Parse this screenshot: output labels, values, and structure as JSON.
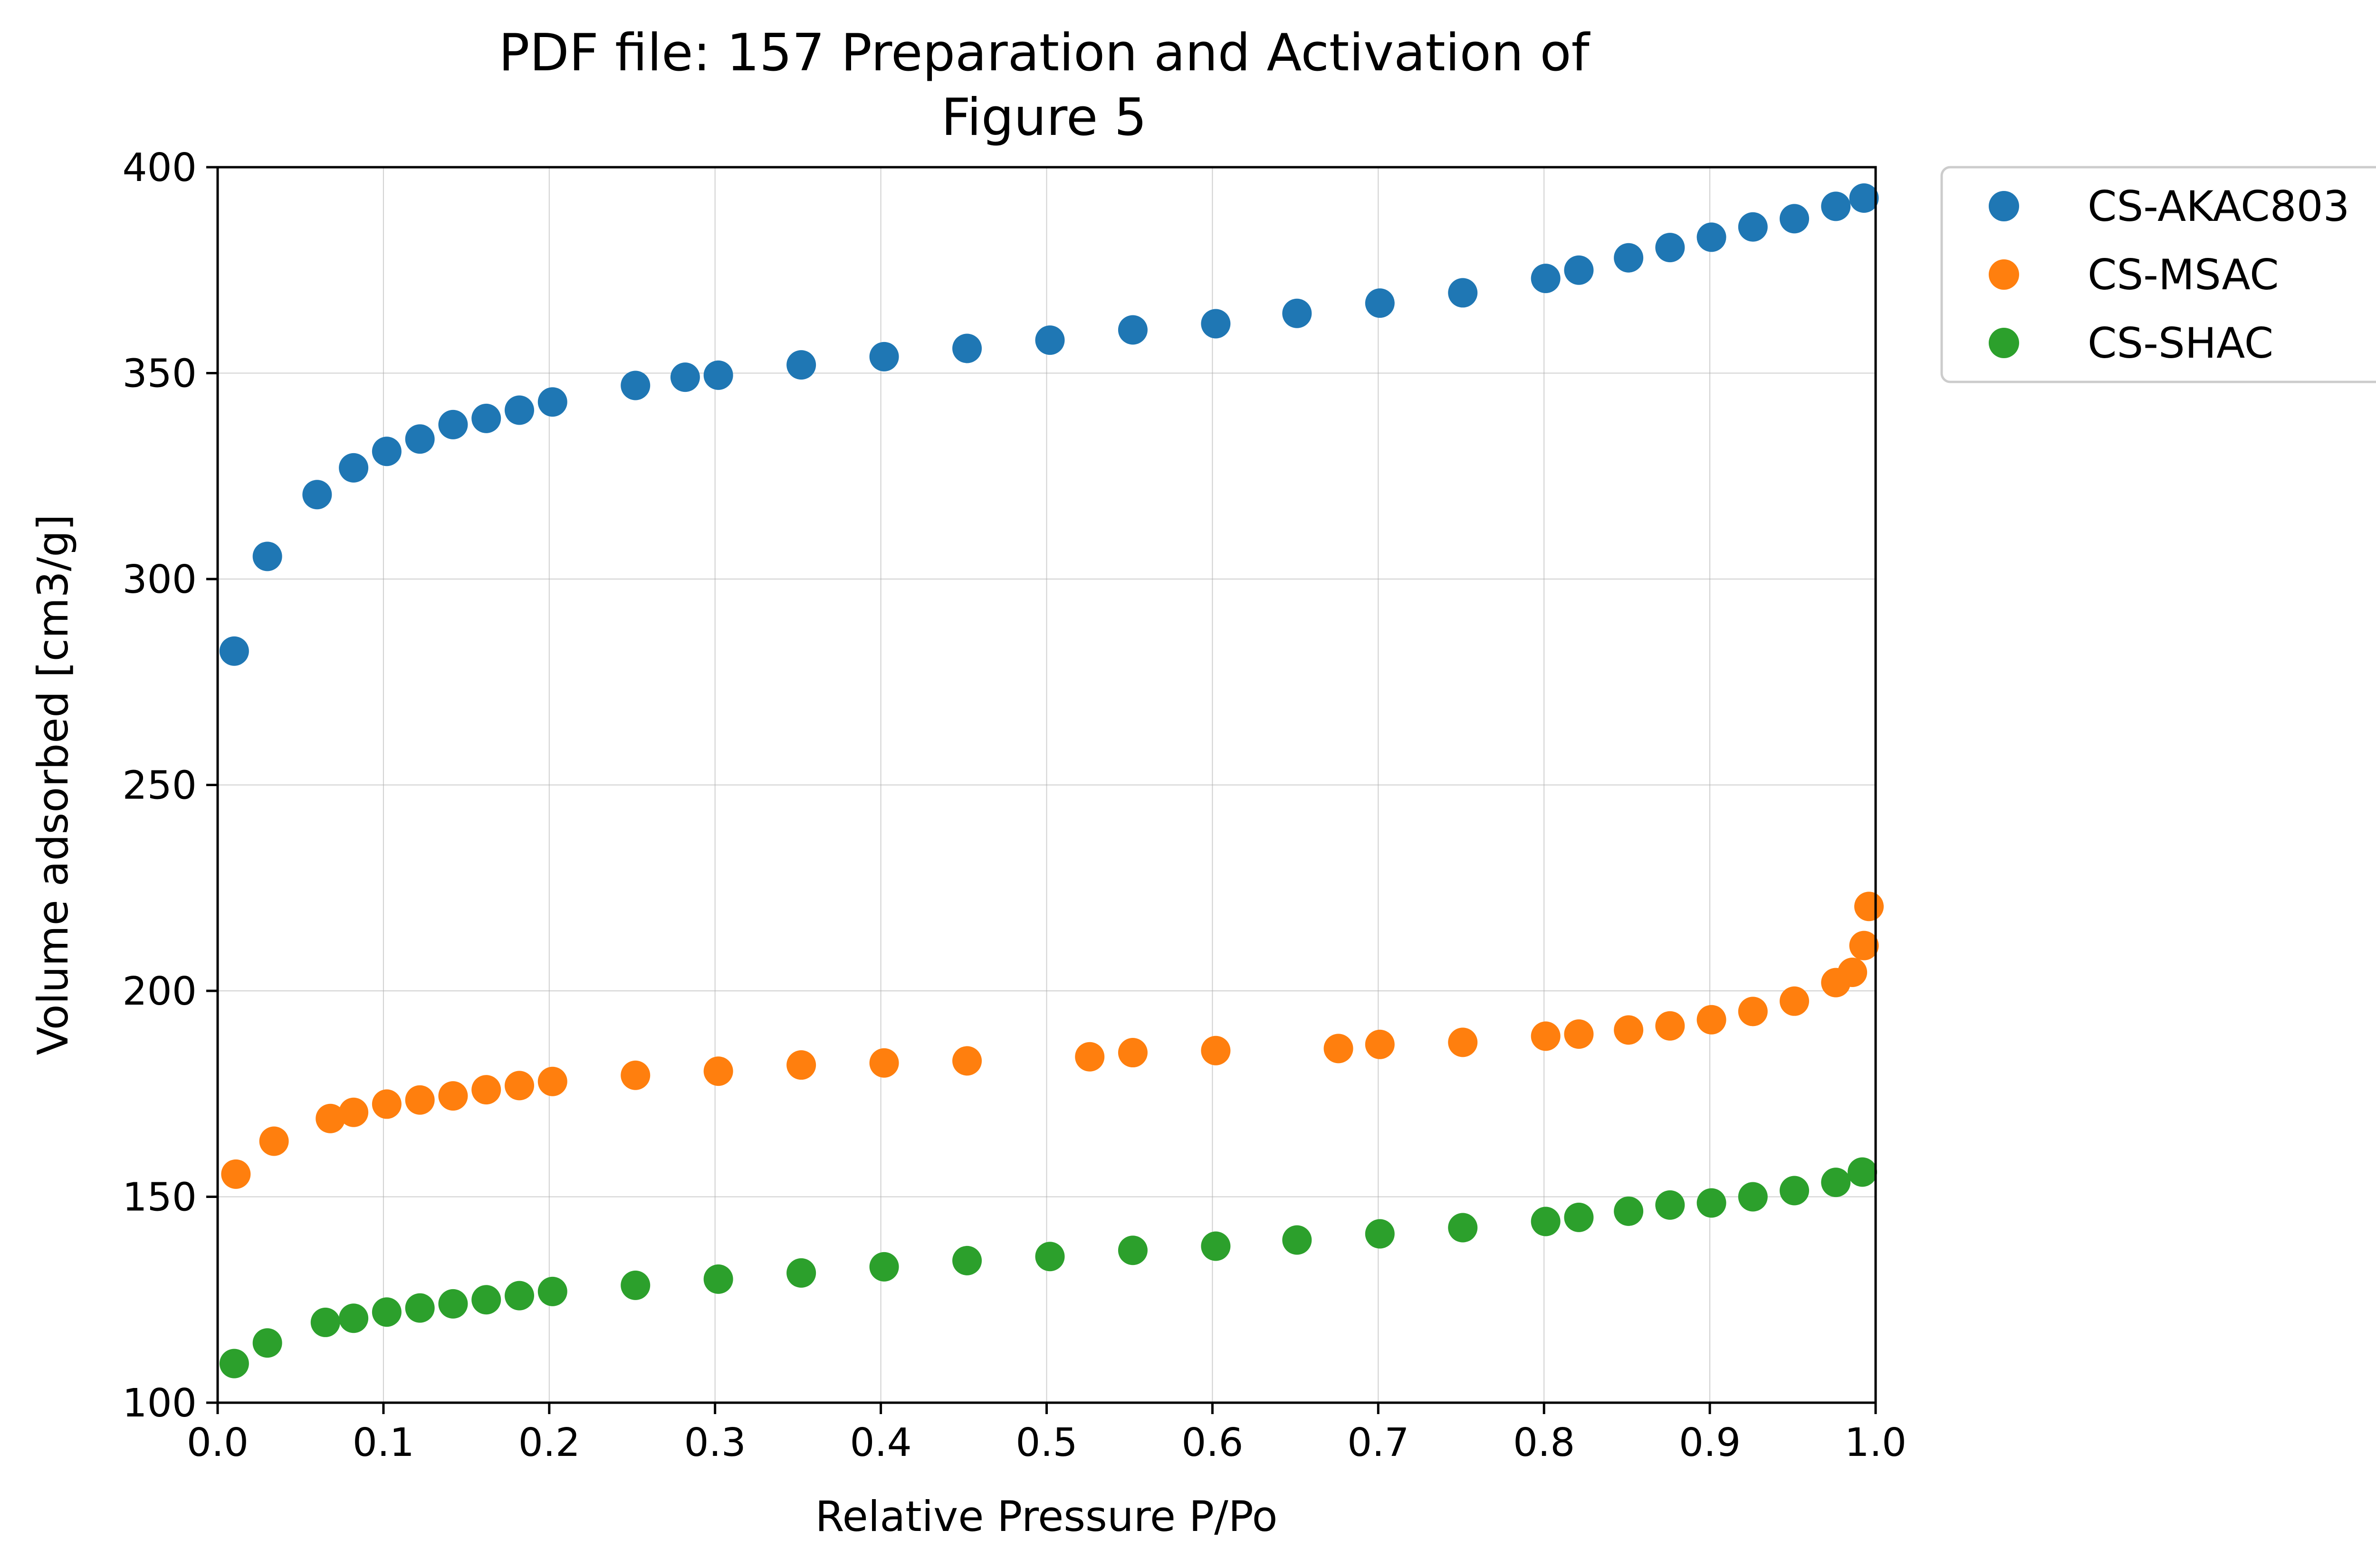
{
  "chart_data": {
    "type": "scatter",
    "title": "PDF file: 157 Preparation and Activation of",
    "subtitle": "Figure 5",
    "xlabel": "Relative Pressure P/Po",
    "ylabel": "Volume adsorbed [cm3/g]",
    "xlim": [
      0.0,
      1.0
    ],
    "ylim": [
      100,
      400
    ],
    "xticks": [
      "0.0",
      "0.1",
      "0.2",
      "0.3",
      "0.4",
      "0.5",
      "0.6",
      "0.7",
      "0.8",
      "0.9",
      "1.0"
    ],
    "yticks": [
      "100",
      "150",
      "200",
      "250",
      "300",
      "350",
      "400"
    ],
    "grid": true,
    "legend_position": "outside-top-right",
    "series": [
      {
        "name": "CS-AKAC803",
        "color": "#1f77b4",
        "x": [
          0.01,
          0.03,
          0.06,
          0.082,
          0.102,
          0.122,
          0.142,
          0.162,
          0.182,
          0.202,
          0.252,
          0.282,
          0.302,
          0.352,
          0.402,
          0.452,
          0.502,
          0.552,
          0.602,
          0.651,
          0.701,
          0.751,
          0.801,
          0.821,
          0.851,
          0.876,
          0.901,
          0.926,
          0.951,
          0.976,
          0.993
        ],
        "y": [
          282.5,
          305.5,
          320.5,
          327,
          331,
          334,
          337.5,
          339,
          341,
          343,
          347,
          349,
          349.5,
          352,
          354,
          356,
          358,
          360.5,
          362,
          364.5,
          367,
          369.5,
          373,
          375,
          378,
          380.5,
          383,
          385.5,
          387.5,
          390.5,
          392.5
        ]
      },
      {
        "name": "CS-MSAC",
        "color": "#ff7f0e",
        "x": [
          0.011,
          0.034,
          0.068,
          0.082,
          0.102,
          0.122,
          0.142,
          0.162,
          0.182,
          0.202,
          0.252,
          0.302,
          0.352,
          0.402,
          0.452,
          0.526,
          0.552,
          0.602,
          0.676,
          0.701,
          0.751,
          0.801,
          0.821,
          0.851,
          0.876,
          0.901,
          0.926,
          0.951,
          0.976,
          0.986,
          0.993,
          0.996
        ],
        "y": [
          155.5,
          163.5,
          169,
          170.5,
          172.5,
          173.5,
          174.5,
          176,
          177,
          178,
          179.5,
          180.5,
          182,
          182.5,
          183,
          184,
          185,
          185.5,
          186,
          187,
          187.5,
          189,
          189.5,
          190.5,
          191.5,
          193,
          195,
          197.5,
          202,
          204.5,
          211,
          220.5
        ]
      },
      {
        "name": "CS-SHAC",
        "color": "#2ca02c",
        "x": [
          0.01,
          0.03,
          0.065,
          0.082,
          0.102,
          0.122,
          0.142,
          0.162,
          0.182,
          0.202,
          0.252,
          0.302,
          0.352,
          0.402,
          0.452,
          0.502,
          0.552,
          0.602,
          0.651,
          0.701,
          0.751,
          0.801,
          0.821,
          0.851,
          0.876,
          0.901,
          0.926,
          0.951,
          0.976,
          0.992
        ],
        "y": [
          109.5,
          114.5,
          119.5,
          120.5,
          122,
          123,
          124,
          125,
          126,
          127,
          128.5,
          130,
          131.5,
          133,
          134.5,
          135.5,
          137,
          138,
          139.5,
          141,
          142.5,
          144,
          145,
          146.5,
          148,
          148.5,
          150,
          151.5,
          153.5,
          156
        ]
      }
    ]
  }
}
